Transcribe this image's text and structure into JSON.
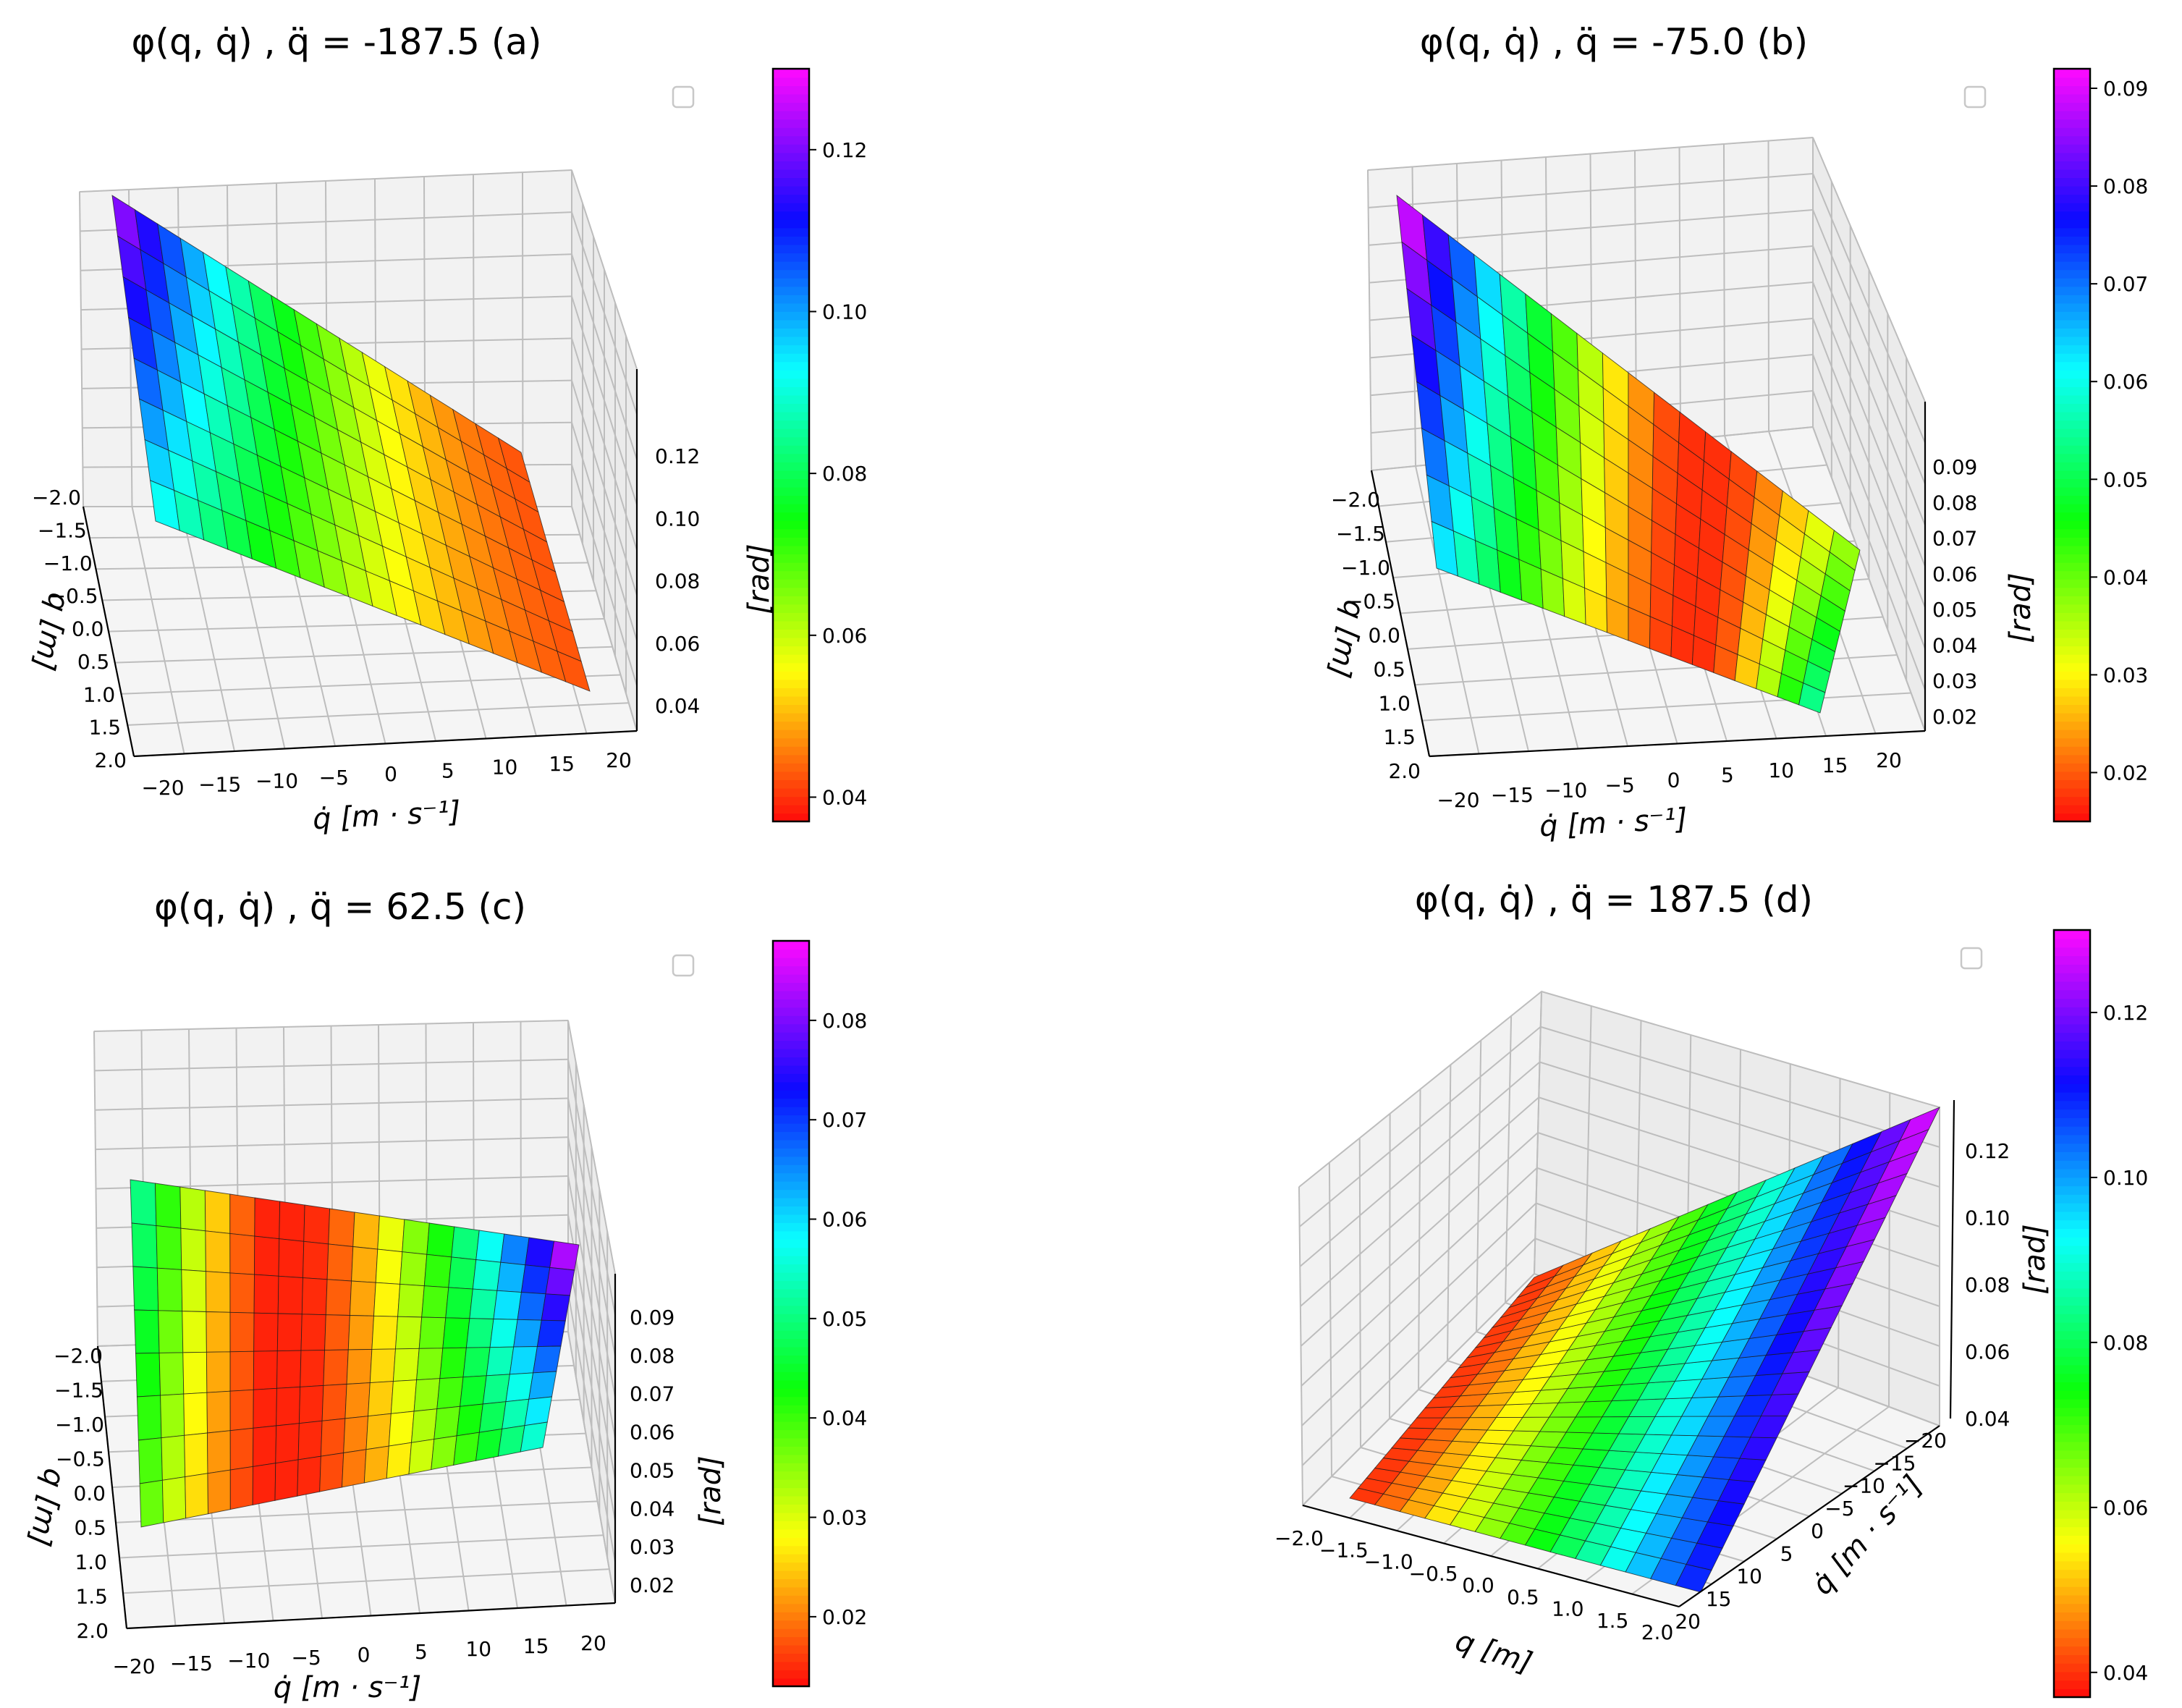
{
  "chart_data": [
    {
      "type": "surface3d",
      "panel": "a",
      "title": "φ(q, q̇) , q̈ = -187.5 (a)",
      "xlabel": "q̇ [m · s⁻¹]",
      "ylabel": "q [m]",
      "zlabel": "[rad]",
      "x_ticks": [
        "−20",
        "−15",
        "−10",
        "−5",
        "0",
        "5",
        "10",
        "15",
        "20"
      ],
      "y_ticks": [
        "−2.0",
        "−1.5",
        "−1.0",
        "−0.5",
        "0.0",
        "0.5",
        "1.0",
        "1.5",
        "2.0"
      ],
      "z_ticks": [
        "0.04",
        "0.06",
        "0.08",
        "0.10",
        "0.12"
      ],
      "colorbar_ticks": [
        "0.04",
        "0.06",
        "0.08",
        "0.10",
        "0.12"
      ],
      "zlim": [
        0.037,
        0.13
      ],
      "colormap": "gist_rainbow"
    },
    {
      "type": "surface3d",
      "panel": "b",
      "title": "φ(q, q̇) , q̈ = -75.0 (b)",
      "xlabel": "q̇ [m · s⁻¹]",
      "ylabel": "q [m]",
      "zlabel": "[rad]",
      "x_ticks": [
        "−20",
        "−15",
        "−10",
        "−5",
        "0",
        "5",
        "10",
        "15",
        "20"
      ],
      "y_ticks": [
        "−2.0",
        "−1.5",
        "−1.0",
        "−0.5",
        "0.0",
        "0.5",
        "1.0",
        "1.5",
        "2.0"
      ],
      "z_ticks": [
        "0.02",
        "0.03",
        "0.04",
        "0.05",
        "0.06",
        "0.07",
        "0.08",
        "0.09"
      ],
      "colorbar_ticks": [
        "0.02",
        "0.03",
        "0.04",
        "0.05",
        "0.06",
        "0.07",
        "0.08",
        "0.09"
      ],
      "zlim": [
        0.015,
        0.092
      ],
      "colormap": "gist_rainbow"
    },
    {
      "type": "surface3d",
      "panel": "c",
      "title": "φ(q, q̇) , q̈ = 62.5 (c)",
      "xlabel": "q̇ [m · s⁻¹]",
      "ylabel": "q [m]",
      "zlabel": "[rad]",
      "x_ticks": [
        "−20",
        "−15",
        "−10",
        "−5",
        "0",
        "5",
        "10",
        "15",
        "20"
      ],
      "y_ticks": [
        "−2.0",
        "−1.5",
        "−1.0",
        "−0.5",
        "0.0",
        "0.5",
        "1.0",
        "1.5",
        "2.0"
      ],
      "z_ticks": [
        "0.02",
        "0.03",
        "0.04",
        "0.05",
        "0.06",
        "0.07",
        "0.08",
        "0.09"
      ],
      "colorbar_ticks": [
        "0.02",
        "0.03",
        "0.04",
        "0.05",
        "0.06",
        "0.07",
        "0.08"
      ],
      "zlim": [
        0.013,
        0.088
      ],
      "colormap": "gist_rainbow"
    },
    {
      "type": "surface3d",
      "panel": "d",
      "title": "φ(q, q̇) , q̈ = 187.5 (d)",
      "xlabel": "q [m]",
      "ylabel": "q̇ [m · s⁻¹]",
      "zlabel": "[rad]",
      "x_ticks": [
        "−2.0",
        "−1.5",
        "−1.0",
        "−0.5",
        "0.0",
        "0.5",
        "1.0",
        "1.5",
        "2.0"
      ],
      "y_ticks": [
        "−20",
        "−15",
        "−10",
        "−5",
        "0",
        "5",
        "10",
        "15",
        "20"
      ],
      "z_ticks": [
        "0.04",
        "0.06",
        "0.08",
        "0.10",
        "0.12"
      ],
      "colorbar_ticks": [
        "0.04",
        "0.06",
        "0.08",
        "0.10",
        "0.12"
      ],
      "zlim": [
        0.037,
        0.13
      ],
      "colormap": "gist_rainbow"
    }
  ]
}
